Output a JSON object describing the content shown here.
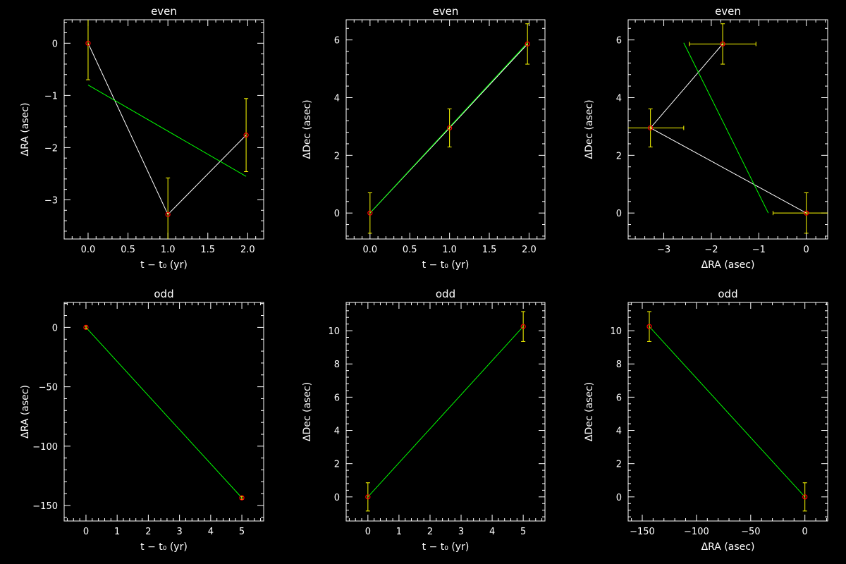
{
  "colors": {
    "background": "#000000",
    "axes": "#ffffff",
    "data_line": "#ffffff",
    "fit_line": "#00ff00",
    "error_bar": "#ffff00",
    "marker": "#ff0000"
  },
  "chart_data": [
    {
      "type": "scatter",
      "title": "even",
      "xlabel": "t − t₀ (yr)",
      "ylabel": "ΔRA (asec)",
      "xlim": [
        -0.3,
        2.2
      ],
      "ylim": [
        -3.75,
        0.45
      ],
      "xticks": [
        0.0,
        0.5,
        1.0,
        1.5,
        2.0
      ],
      "xtick_labels": [
        "0.0",
        "0.5",
        "1.0",
        "1.5",
        "2.0"
      ],
      "yticks": [
        -3,
        -2,
        -1,
        0
      ],
      "ytick_labels": [
        "−3",
        "−2",
        "−1",
        "0"
      ],
      "points": [
        {
          "x": 0.0,
          "y": 0.0,
          "yerr": 0.7
        },
        {
          "x": 1.0,
          "y": -3.28,
          "yerr": 0.7
        },
        {
          "x": 1.98,
          "y": -1.76,
          "yerr": 0.7
        }
      ],
      "fit": {
        "x": [
          0.0,
          1.98
        ],
        "y": [
          -0.8,
          -2.55
        ]
      }
    },
    {
      "type": "scatter",
      "title": "even",
      "xlabel": "t − t₀ (yr)",
      "ylabel": "ΔDec (asec)",
      "xlim": [
        -0.3,
        2.2
      ],
      "ylim": [
        -0.9,
        6.7
      ],
      "xticks": [
        0.0,
        0.5,
        1.0,
        1.5,
        2.0
      ],
      "xtick_labels": [
        "0.0",
        "0.5",
        "1.0",
        "1.5",
        "2.0"
      ],
      "yticks": [
        0,
        2,
        4,
        6
      ],
      "ytick_labels": [
        "0",
        "2",
        "4",
        "6"
      ],
      "points": [
        {
          "x": 0.0,
          "y": 0.0,
          "yerr": 0.7
        },
        {
          "x": 1.0,
          "y": 2.95,
          "yerr": 0.66
        },
        {
          "x": 1.98,
          "y": 5.86,
          "yerr": 0.7
        }
      ],
      "fit": {
        "x": [
          0.0,
          1.98
        ],
        "y": [
          0.0,
          5.9
        ]
      }
    },
    {
      "type": "scatter",
      "title": "even",
      "xlabel": "ΔRA (asec)",
      "ylabel": "ΔDec (asec)",
      "xlim": [
        -3.75,
        0.45
      ],
      "ylim": [
        -0.9,
        6.7
      ],
      "xticks": [
        -3,
        -2,
        -1,
        0
      ],
      "xtick_labels": [
        "−3",
        "−2",
        "−1",
        "0"
      ],
      "yticks": [
        0,
        2,
        4,
        6
      ],
      "ytick_labels": [
        "0",
        "2",
        "4",
        "6"
      ],
      "points": [
        {
          "x": 0.0,
          "y": 0.0,
          "xerr": 0.7,
          "yerr": 0.7
        },
        {
          "x": -3.28,
          "y": 2.95,
          "xerr": 0.7,
          "yerr": 0.66
        },
        {
          "x": -1.76,
          "y": 5.86,
          "xerr": 0.7,
          "yerr": 0.7
        }
      ],
      "fit": {
        "x": [
          -2.58,
          -0.8
        ],
        "y": [
          5.9,
          0.0
        ]
      }
    },
    {
      "type": "scatter",
      "title": "odd",
      "xlabel": "t − t₀ (yr)",
      "ylabel": "ΔRA (asec)",
      "xlim": [
        -0.7,
        5.7
      ],
      "ylim": [
        -163,
        21
      ],
      "xticks": [
        0,
        1,
        2,
        3,
        4,
        5
      ],
      "xtick_labels": [
        "0",
        "1",
        "2",
        "3",
        "4",
        "5"
      ],
      "yticks": [
        -150,
        -100,
        -50,
        0
      ],
      "ytick_labels": [
        "−150",
        "−100",
        "−50",
        "0"
      ],
      "points": [
        {
          "x": 0,
          "y": 0.0,
          "yerr": 1.2
        },
        {
          "x": 5,
          "y": -143.5,
          "yerr": 1.2
        }
      ],
      "fit": {
        "x": [
          0,
          5
        ],
        "y": [
          0.0,
          -143.5
        ]
      }
    },
    {
      "type": "scatter",
      "title": "odd",
      "xlabel": "t − t₀ (yr)",
      "ylabel": "ΔDec (asec)",
      "xlim": [
        -0.7,
        5.7
      ],
      "ylim": [
        -1.45,
        11.7
      ],
      "xticks": [
        0,
        1,
        2,
        3,
        4,
        5
      ],
      "xtick_labels": [
        "0",
        "1",
        "2",
        "3",
        "4",
        "5"
      ],
      "yticks": [
        0,
        2,
        4,
        6,
        8,
        10
      ],
      "ytick_labels": [
        "0",
        "2",
        "4",
        "6",
        "8",
        "10"
      ],
      "points": [
        {
          "x": 0,
          "y": 0.0,
          "yerr": 0.85
        },
        {
          "x": 5,
          "y": 10.25,
          "yerr": 0.9
        }
      ],
      "fit": {
        "x": [
          0,
          5
        ],
        "y": [
          0.0,
          10.25
        ]
      }
    },
    {
      "type": "scatter",
      "title": "odd",
      "xlabel": "ΔRA (asec)",
      "ylabel": "ΔDec (asec)",
      "xlim": [
        -163,
        21
      ],
      "ylim": [
        -1.45,
        11.7
      ],
      "xticks": [
        -150,
        -100,
        -50,
        0
      ],
      "xtick_labels": [
        "−150",
        "−100",
        "−50",
        "0"
      ],
      "yticks": [
        0,
        2,
        4,
        6,
        8,
        10
      ],
      "ytick_labels": [
        "0",
        "2",
        "4",
        "6",
        "8",
        "10"
      ],
      "points": [
        {
          "x": 0.0,
          "y": 0.0,
          "yerr": 0.85
        },
        {
          "x": -143.5,
          "y": 10.25,
          "yerr": 0.9
        }
      ],
      "fit": {
        "x": [
          -143.5,
          0.0
        ],
        "y": [
          10.25,
          0.0
        ]
      }
    }
  ]
}
